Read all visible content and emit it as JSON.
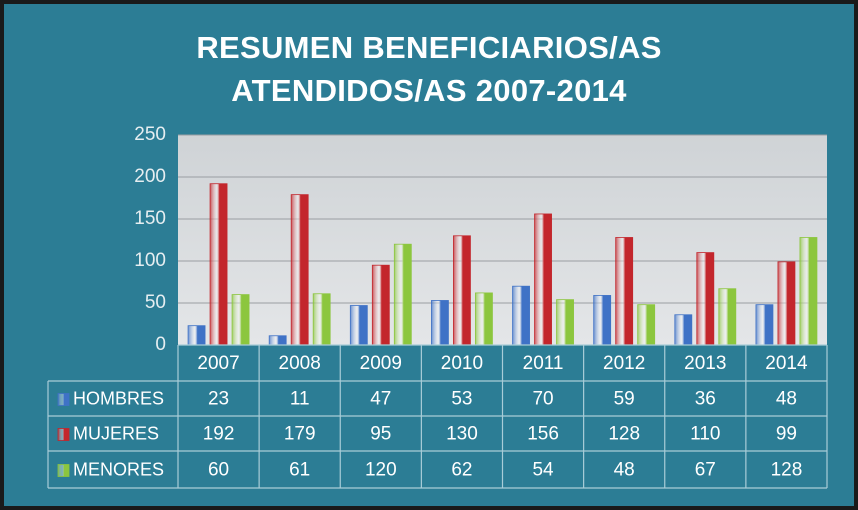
{
  "chart_data": {
    "type": "bar",
    "title": "RESUMEN BENEFICIARIOS/AS ATENDIDOS/AS 2007-2014",
    "categories": [
      "2007",
      "2008",
      "2009",
      "2010",
      "2011",
      "2012",
      "2013",
      "2014"
    ],
    "series": [
      {
        "name": "HOMBRES",
        "color": "#3f72c6",
        "values": [
          23,
          11,
          47,
          53,
          70,
          59,
          36,
          48
        ]
      },
      {
        "name": "MUJERES",
        "color": "#c3262c",
        "values": [
          192,
          179,
          95,
          130,
          156,
          128,
          110,
          99
        ]
      },
      {
        "name": "MENORES",
        "color": "#8cc63e",
        "values": [
          60,
          61,
          120,
          62,
          54,
          48,
          67,
          128
        ]
      }
    ],
    "ylim": [
      0,
      250
    ],
    "yticks": [
      0,
      50,
      100,
      150,
      200,
      250
    ],
    "grid": true
  }
}
